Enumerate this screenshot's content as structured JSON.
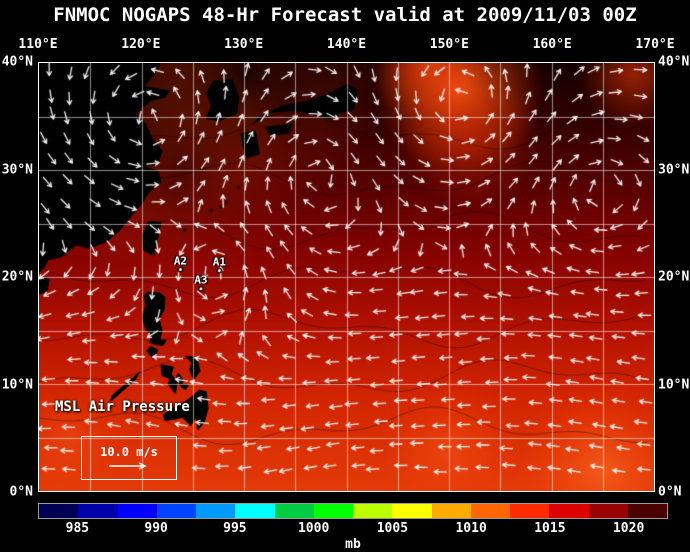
{
  "title": "FNMOC NOGAPS 48-Hr Forecast valid at 2009/11/03 00Z",
  "map": {
    "lon_labels_top": [
      "110°E",
      "120°E",
      "130°E",
      "140°E",
      "150°E",
      "160°E",
      "170°E"
    ],
    "lat_labels_left": [
      "40°N",
      "30°N",
      "20°N",
      "10°N",
      "0°N"
    ],
    "lat_labels_right": [
      "40°N",
      "30°N",
      "20°N",
      "10°N",
      "0°N"
    ],
    "field_label": "MSL Air Pressure",
    "storm_annotations": [
      {
        "label": "A1",
        "lon": 127.6,
        "lat": 20.6
      },
      {
        "label": "A2",
        "lon": 123.8,
        "lat": 20.7
      },
      {
        "label": "A3",
        "lon": 125.8,
        "lat": 18.9
      }
    ],
    "wind_legend": {
      "label": "10.0 m/s"
    }
  },
  "colorbar": {
    "unit": "mb",
    "tick_labels": [
      "985",
      "990",
      "995",
      "1000",
      "1005",
      "1010",
      "1015",
      "1020"
    ],
    "colors": [
      "#000055",
      "#0000aa",
      "#0000ff",
      "#0044ff",
      "#0099ff",
      "#00ffff",
      "#00cc44",
      "#00ff00",
      "#bbff00",
      "#ffff00",
      "#ffaa00",
      "#ff6600",
      "#ff2a00",
      "#dd0000",
      "#990000",
      "#4a0000"
    ]
  },
  "chart_data": {
    "type": "heatmap",
    "title": "FNMOC NOGAPS 48-Hr Forecast valid at 2009/11/03 00Z",
    "field": "MSL Air Pressure",
    "unit": "mb",
    "lon_range": [
      110,
      170
    ],
    "lat_range": [
      0,
      40
    ],
    "grid_interval_deg": 5,
    "pressure_scale_mb": [
      985,
      990,
      995,
      1000,
      1005,
      1010,
      1015,
      1020
    ],
    "wind_reference_ms": 10.0,
    "storm_labels": [
      "A1",
      "A2",
      "A3"
    ],
    "pattern_summary": "High pressure (dark, ~1020 mb) to the north, lower pressure (bright red, ~1005-1010 mb) toward the equator; white wind vectors overlaid"
  }
}
